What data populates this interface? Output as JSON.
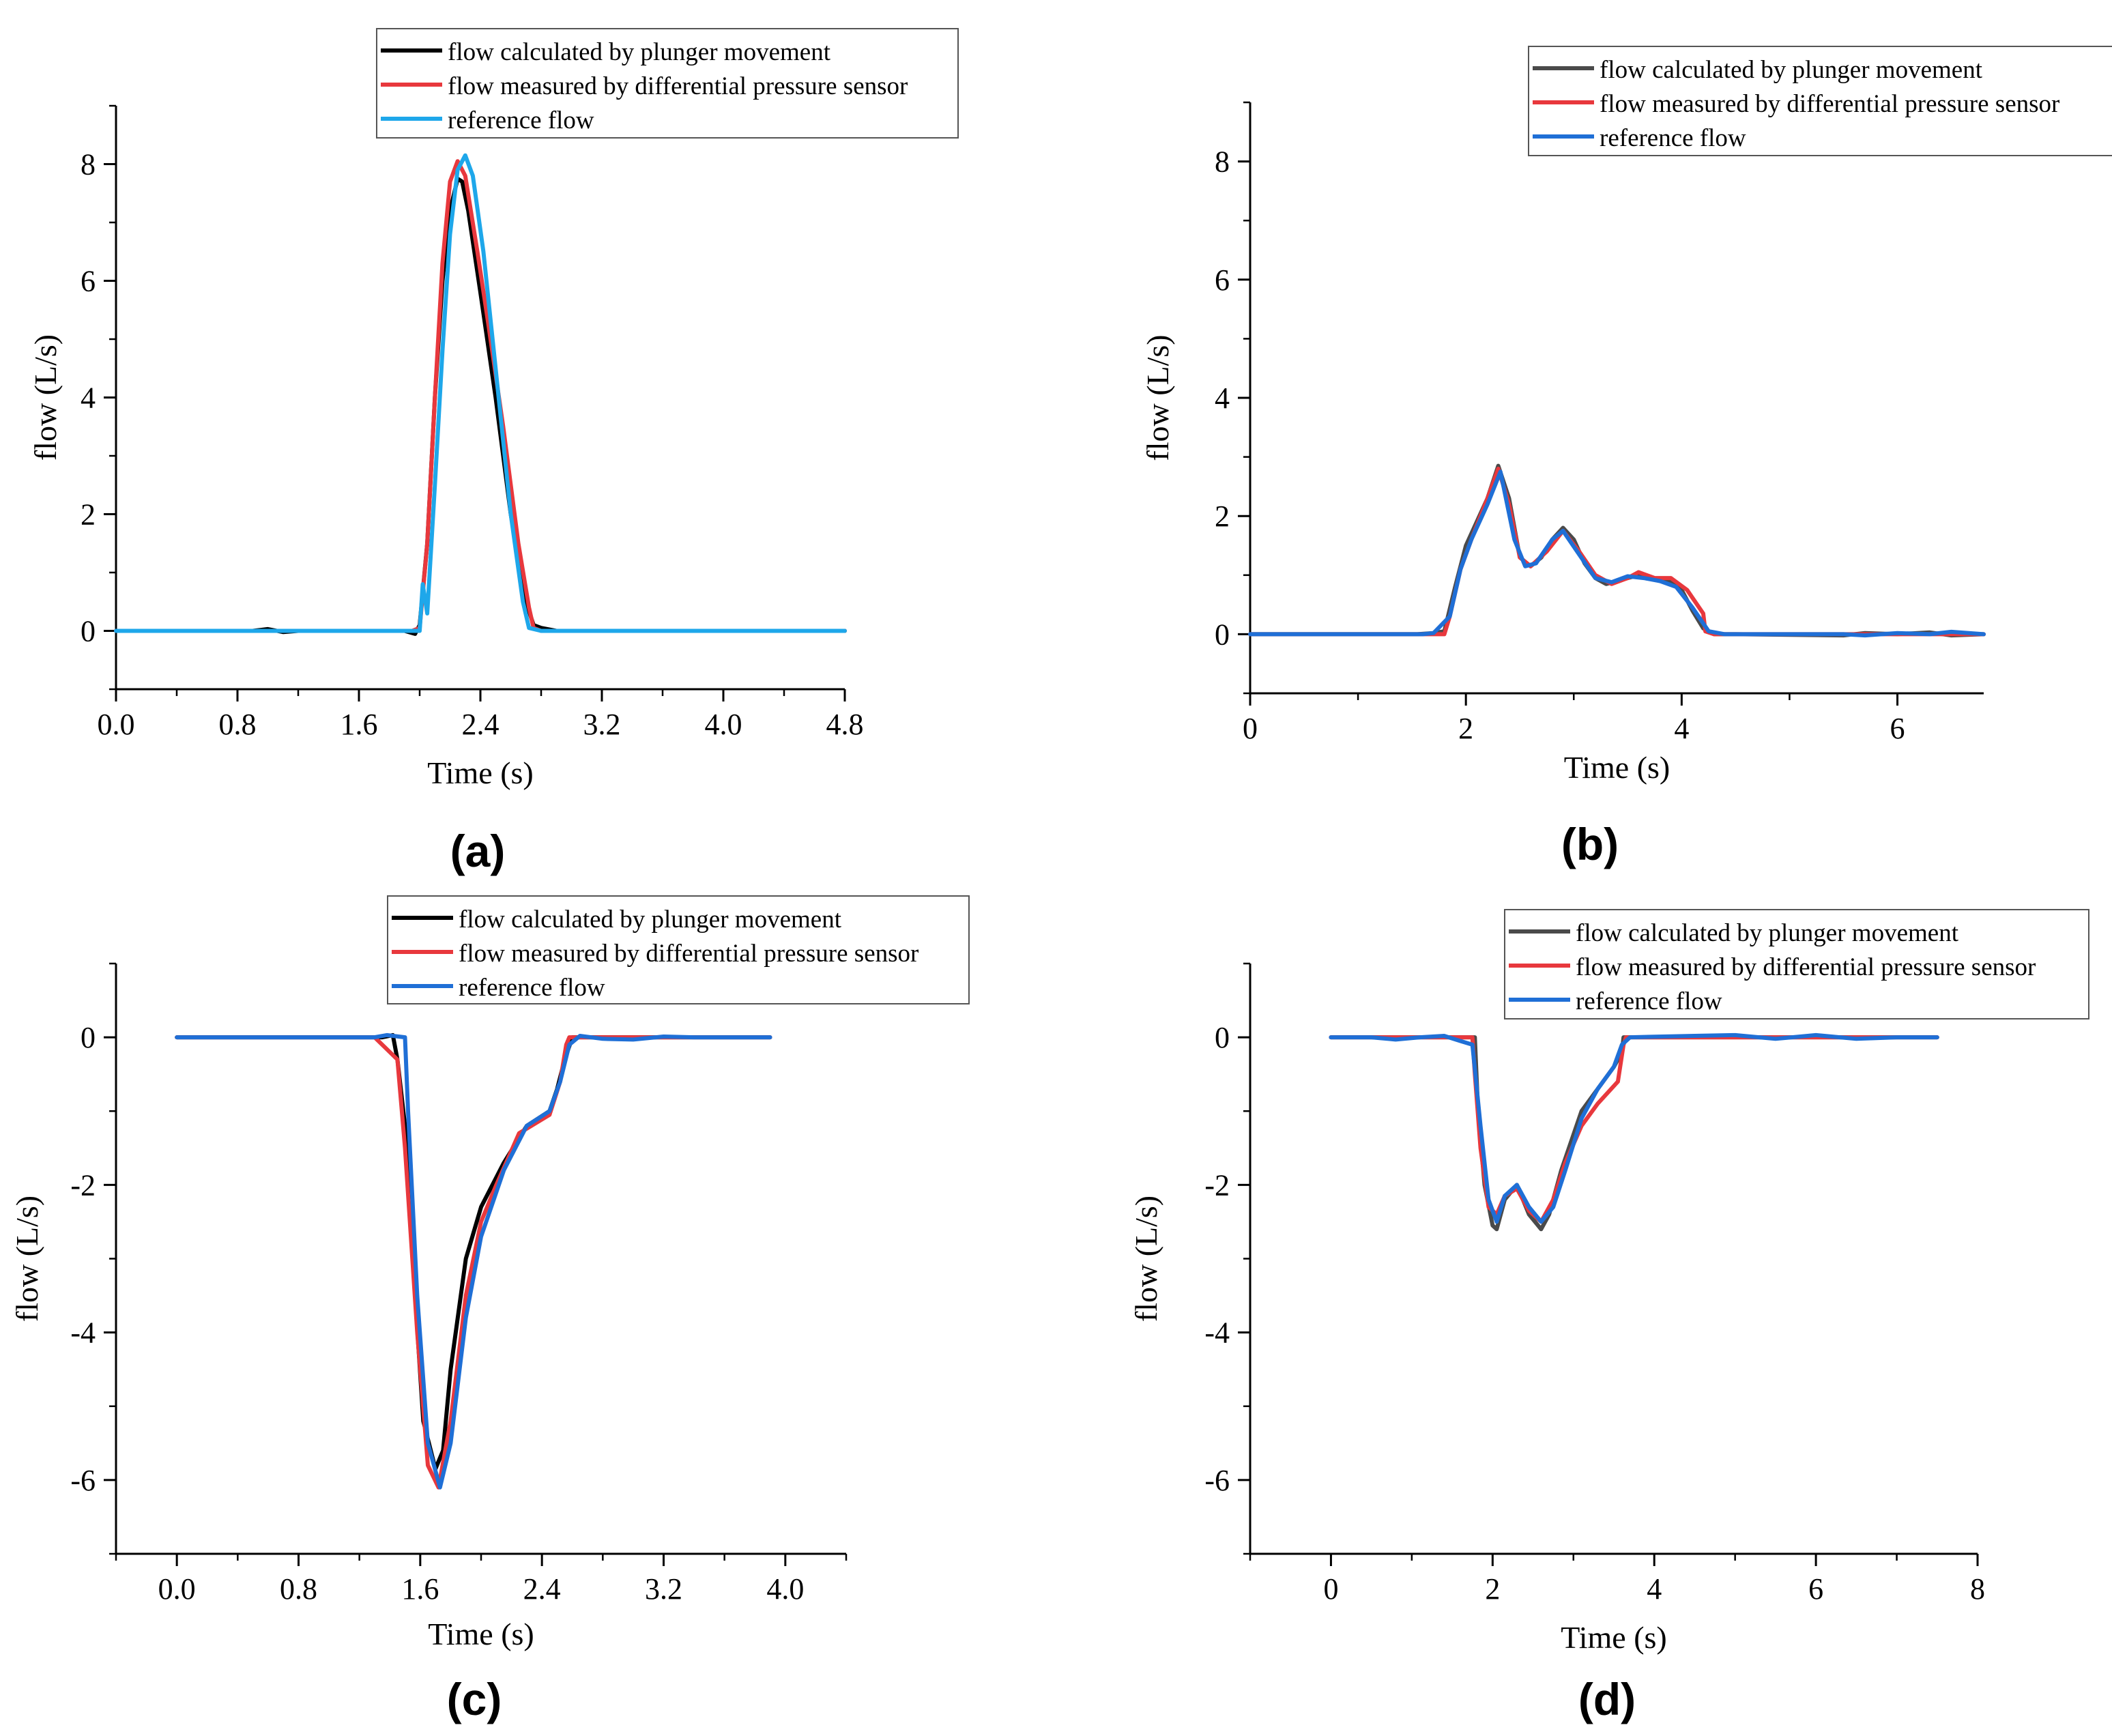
{
  "figure": {
    "colors": {
      "calc_a": "#000000",
      "calc_gray": "#4a4a4a",
      "measured": "#e8383d",
      "ref_light": "#1ea7ea",
      "ref_blue": "#1f6fd6"
    }
  },
  "chart_data": [
    {
      "type": "line",
      "panel_label": "(a)",
      "xlabel": "Time (s)",
      "ylabel": "flow (L/s)",
      "xlim": [
        0,
        4.8
      ],
      "ylim": [
        -1,
        9
      ],
      "xticks": [
        0,
        0.8,
        1.6,
        2.4,
        3.2,
        4.0,
        4.8
      ],
      "xtick_labels": [
        "0.0",
        "0.8",
        "1.6",
        "2.4",
        "3.2",
        "4.0",
        "4.8"
      ],
      "yticks": [
        0,
        2,
        4,
        6,
        8
      ],
      "ytick_labels": [
        "0",
        "2",
        "4",
        "6",
        "8"
      ],
      "legend_position": "top-right",
      "series": [
        {
          "name": "flow calculated by plunger movement",
          "color": "#000000",
          "x": [
            0,
            0.9,
            1.0,
            1.1,
            1.2,
            1.9,
            1.97,
            2.0,
            2.05,
            2.1,
            2.15,
            2.2,
            2.25,
            2.28,
            2.32,
            2.4,
            2.5,
            2.6,
            2.7,
            2.75,
            2.8,
            2.9,
            4.8
          ],
          "y": [
            0,
            0,
            0.03,
            -0.02,
            0,
            0,
            -0.05,
            0.1,
            1.5,
            4.0,
            6.0,
            7.2,
            7.75,
            7.7,
            7.2,
            5.8,
            4.0,
            2.0,
            0.5,
            0.1,
            0.05,
            0,
            0
          ]
        },
        {
          "name": "flow measured by differential pressure sensor",
          "color": "#e8383d",
          "x": [
            0,
            1.95,
            2.0,
            2.05,
            2.1,
            2.15,
            2.2,
            2.25,
            2.3,
            2.38,
            2.45,
            2.55,
            2.65,
            2.72,
            2.75,
            2.8,
            4.8
          ],
          "y": [
            0,
            0,
            0.05,
            1.5,
            4.0,
            6.3,
            7.7,
            8.05,
            7.8,
            6.5,
            5.3,
            3.5,
            1.5,
            0.4,
            0.05,
            0,
            0
          ]
        },
        {
          "name": "reference flow",
          "color": "#1ea7ea",
          "x": [
            0,
            2.0,
            2.02,
            2.05,
            2.1,
            2.15,
            2.2,
            2.25,
            2.3,
            2.35,
            2.42,
            2.5,
            2.6,
            2.68,
            2.72,
            2.8,
            4.8
          ],
          "y": [
            0,
            0,
            0.8,
            0.3,
            2.5,
            4.8,
            6.8,
            7.9,
            8.15,
            7.8,
            6.5,
            4.5,
            2.0,
            0.5,
            0.05,
            0,
            0
          ]
        }
      ]
    },
    {
      "type": "line",
      "panel_label": "(b)",
      "xlabel": "Time (s)",
      "ylabel": "flow (L/s)",
      "xlim": [
        0,
        6.8
      ],
      "ylim": [
        -1,
        9
      ],
      "xticks": [
        0,
        2,
        4,
        6
      ],
      "xtick_labels": [
        "0",
        "2",
        "4",
        "6"
      ],
      "yticks": [
        0,
        2,
        4,
        6,
        8
      ],
      "ytick_labels": [
        "0",
        "2",
        "4",
        "6",
        "8"
      ],
      "legend_position": "top-right",
      "series": [
        {
          "name": "flow calculated by plunger movement",
          "color": "#4a4a4a",
          "x": [
            0,
            1.55,
            1.7,
            1.8,
            1.9,
            2.0,
            2.1,
            2.2,
            2.3,
            2.4,
            2.5,
            2.6,
            2.7,
            2.8,
            2.9,
            3.0,
            3.1,
            3.2,
            3.3,
            3.4,
            3.5,
            3.6,
            3.7,
            3.8,
            3.9,
            4.0,
            4.1,
            4.2,
            4.3,
            4.5,
            5.5,
            5.7,
            6.0,
            6.3,
            6.5,
            6.8
          ],
          "y": [
            0,
            0,
            0.02,
            0.05,
            0.8,
            1.5,
            1.9,
            2.3,
            2.85,
            2.3,
            1.3,
            1.15,
            1.3,
            1.6,
            1.8,
            1.6,
            1.2,
            0.95,
            0.85,
            0.9,
            0.95,
            1.0,
            0.95,
            0.9,
            0.9,
            0.75,
            0.4,
            0.1,
            0,
            0,
            -0.02,
            0.02,
            0,
            0.03,
            -0.02,
            0
          ]
        },
        {
          "name": "flow measured by differential pressure sensor",
          "color": "#e8383d",
          "x": [
            0,
            1.8,
            1.85,
            1.95,
            2.05,
            2.2,
            2.3,
            2.4,
            2.5,
            2.6,
            2.75,
            2.9,
            3.05,
            3.2,
            3.35,
            3.5,
            3.6,
            3.75,
            3.9,
            4.05,
            4.2,
            4.22,
            4.3,
            6.8
          ],
          "y": [
            0,
            0,
            0.3,
            1.1,
            1.6,
            2.3,
            2.8,
            2.2,
            1.3,
            1.15,
            1.4,
            1.75,
            1.4,
            1.0,
            0.85,
            0.95,
            1.05,
            0.95,
            0.95,
            0.75,
            0.35,
            0.05,
            0,
            0
          ]
        },
        {
          "name": "reference flow",
          "color": "#1f6fd6",
          "x": [
            0,
            1.6,
            1.7,
            1.85,
            1.95,
            2.05,
            2.2,
            2.32,
            2.45,
            2.55,
            2.65,
            2.8,
            2.9,
            3.05,
            3.2,
            3.35,
            3.5,
            3.65,
            3.8,
            3.95,
            4.1,
            4.25,
            4.4,
            5.5,
            5.7,
            6.0,
            6.3,
            6.5,
            6.8
          ],
          "y": [
            0,
            0,
            0.02,
            0.3,
            1.1,
            1.6,
            2.2,
            2.75,
            1.6,
            1.15,
            1.2,
            1.6,
            1.75,
            1.35,
            0.95,
            0.88,
            0.98,
            0.95,
            0.9,
            0.8,
            0.45,
            0.05,
            0,
            0,
            -0.02,
            0.02,
            0,
            0.04,
            0
          ]
        }
      ]
    },
    {
      "type": "line",
      "panel_label": "(c)",
      "xlabel": "Time (s)",
      "ylabel": "flow (L/s)",
      "xlim": [
        -0.4,
        4.4
      ],
      "ylim": [
        -7,
        1
      ],
      "xticks": [
        0,
        0.8,
        1.6,
        2.4,
        3.2,
        4.0
      ],
      "xtick_labels": [
        "0.0",
        "0.8",
        "1.6",
        "2.4",
        "3.2",
        "4.0"
      ],
      "yticks": [
        0,
        -2,
        -4,
        -6
      ],
      "ytick_labels": [
        "0",
        "-2",
        "-4",
        "-6"
      ],
      "legend_position": "top-right",
      "series": [
        {
          "name": "flow calculated by plunger movement",
          "color": "#000000",
          "x": [
            0,
            1.35,
            1.42,
            1.45,
            1.5,
            1.55,
            1.62,
            1.7,
            1.75,
            1.8,
            1.9,
            2.0,
            2.15,
            2.3,
            2.45,
            2.5,
            2.55,
            2.6,
            2.7,
            3.2,
            3.9
          ],
          "y": [
            0,
            0,
            0.03,
            -0.3,
            -1.2,
            -3.0,
            -5.2,
            -5.85,
            -5.6,
            -4.5,
            -3.0,
            -2.3,
            -1.7,
            -1.2,
            -1.0,
            -0.7,
            -0.3,
            0,
            0,
            0,
            0
          ]
        },
        {
          "name": "flow measured by differential pressure sensor",
          "color": "#e8383d",
          "x": [
            0,
            1.3,
            1.45,
            1.5,
            1.58,
            1.65,
            1.72,
            1.8,
            1.9,
            2.0,
            2.1,
            2.25,
            2.45,
            2.52,
            2.56,
            2.58,
            3.9
          ],
          "y": [
            0,
            0,
            -0.3,
            -1.5,
            -4.0,
            -5.8,
            -6.1,
            -5.2,
            -3.5,
            -2.5,
            -2.0,
            -1.3,
            -1.05,
            -0.6,
            -0.1,
            0,
            0
          ]
        },
        {
          "name": "reference flow",
          "color": "#1f6fd6",
          "x": [
            0,
            1.3,
            1.38,
            1.5,
            1.52,
            1.58,
            1.65,
            1.73,
            1.8,
            1.9,
            2.0,
            2.15,
            2.3,
            2.45,
            2.52,
            2.58,
            2.65,
            2.8,
            3.0,
            3.2,
            3.4,
            3.9
          ],
          "y": [
            0,
            0,
            0.03,
            0,
            -1.0,
            -3.5,
            -5.5,
            -6.1,
            -5.5,
            -3.8,
            -2.7,
            -1.8,
            -1.2,
            -1.0,
            -0.6,
            -0.1,
            0.02,
            -0.02,
            -0.03,
            0.01,
            0,
            0
          ]
        }
      ]
    },
    {
      "type": "line",
      "panel_label": "(d)",
      "xlabel": "Time (s)",
      "ylabel": "flow (L/s)",
      "xlim": [
        -1,
        8
      ],
      "ylim": [
        -7,
        1
      ],
      "xticks": [
        0,
        2,
        4,
        6,
        8
      ],
      "xtick_labels": [
        "0",
        "2",
        "4",
        "6",
        "8"
      ],
      "yticks": [
        0,
        -2,
        -4,
        -6
      ],
      "ytick_labels": [
        "0",
        "-2",
        "-4",
        "-6"
      ],
      "legend_position": "top-right",
      "series": [
        {
          "name": "flow calculated by plunger movement",
          "color": "#4a4a4a",
          "x": [
            0,
            1.7,
            1.78,
            1.82,
            1.9,
            2.0,
            2.05,
            2.15,
            2.3,
            2.45,
            2.6,
            2.7,
            2.85,
            3.1,
            3.5,
            3.6,
            3.62,
            7.5
          ],
          "y": [
            0,
            0,
            0,
            -1.0,
            -2.0,
            -2.55,
            -2.6,
            -2.2,
            -2.0,
            -2.4,
            -2.6,
            -2.4,
            -1.8,
            -1.0,
            -0.4,
            -0.2,
            0,
            0
          ]
        },
        {
          "name": "flow measured by differential pressure sensor",
          "color": "#e8383d",
          "x": [
            0,
            1.75,
            1.78,
            1.85,
            1.95,
            2.05,
            2.15,
            2.3,
            2.45,
            2.6,
            2.75,
            2.9,
            3.1,
            3.3,
            3.55,
            3.62,
            3.65,
            7.5
          ],
          "y": [
            0,
            0,
            -0.5,
            -1.5,
            -2.3,
            -2.4,
            -2.15,
            -2.05,
            -2.35,
            -2.5,
            -2.2,
            -1.7,
            -1.2,
            -0.9,
            -0.6,
            -0.1,
            0,
            0
          ]
        },
        {
          "name": "reference flow",
          "color": "#1f6fd6",
          "x": [
            0,
            0.5,
            0.8,
            1.1,
            1.4,
            1.6,
            1.75,
            1.85,
            1.95,
            2.05,
            2.15,
            2.3,
            2.45,
            2.6,
            2.75,
            2.9,
            3.1,
            3.3,
            3.5,
            3.6,
            3.7,
            4.5,
            5.0,
            5.5,
            6.0,
            6.5,
            7.0,
            7.5
          ],
          "y": [
            0,
            0,
            -0.03,
            0,
            0.02,
            -0.05,
            -0.1,
            -1.2,
            -2.2,
            -2.5,
            -2.15,
            -2.0,
            -2.3,
            -2.5,
            -2.3,
            -1.8,
            -1.1,
            -0.7,
            -0.4,
            -0.1,
            0,
            0.02,
            0.03,
            -0.02,
            0.03,
            -0.02,
            0,
            0
          ]
        }
      ]
    }
  ]
}
